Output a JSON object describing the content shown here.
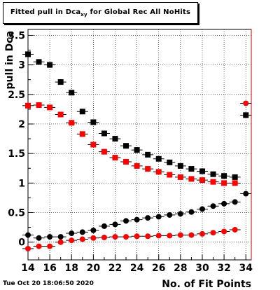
{
  "title": {
    "prefix": "Fitted pull in Dca",
    "subscript": "xy",
    "suffix": " for Global Rec All NoHits"
  },
  "datestamp": "Tue Oct 20 18:06:50 2020",
  "chart_data": {
    "type": "scatter",
    "title": "Fitted pull in Dca_xy for Global Rec All NoHits",
    "xlabel": "No. of Fit Points",
    "ylabel": "pull in Dca",
    "xlim": [
      14,
      34.5
    ],
    "ylim": [
      -0.3,
      3.6
    ],
    "xticks": [
      14,
      16,
      18,
      20,
      22,
      24,
      26,
      28,
      30,
      32,
      34
    ],
    "yticks": [
      0,
      0.5,
      1,
      1.5,
      2,
      2.5,
      3,
      3.5
    ],
    "ytick_labels": [
      "0",
      "0.5",
      "1",
      "1.5",
      "2",
      "2.5",
      "3",
      "3.5"
    ],
    "grid": true,
    "reference_line_x": 34.5,
    "series": [
      {
        "marker": "square",
        "color": "#000000",
        "x": [
          14,
          15,
          16,
          17,
          18,
          19,
          20,
          21,
          22,
          23,
          24,
          25,
          26,
          27,
          28,
          29,
          30,
          31,
          32,
          33,
          34
        ],
        "y": [
          3.18,
          3.05,
          3.0,
          2.71,
          2.53,
          2.21,
          2.03,
          1.84,
          1.75,
          1.63,
          1.56,
          1.48,
          1.41,
          1.35,
          1.29,
          1.24,
          1.2,
          1.15,
          1.12,
          1.1,
          2.15
        ]
      },
      {
        "marker": "square",
        "color": "#ff0000",
        "x": [
          14,
          15,
          16,
          17,
          18,
          19,
          20,
          21,
          22,
          23,
          24,
          25,
          26,
          27,
          28,
          29,
          30,
          31,
          32,
          33
        ],
        "y": [
          2.31,
          2.32,
          2.28,
          2.16,
          2.02,
          1.83,
          1.65,
          1.53,
          1.43,
          1.36,
          1.29,
          1.24,
          1.19,
          1.14,
          1.1,
          1.07,
          1.05,
          1.02,
          1.0,
          1.0
        ]
      },
      {
        "marker": "circle",
        "color": "#000000",
        "x": [
          14,
          15,
          16,
          17,
          18,
          19,
          20,
          21,
          22,
          23,
          24,
          25,
          26,
          27,
          28,
          29,
          30,
          31,
          32,
          33,
          34
        ],
        "y": [
          0.12,
          0.07,
          0.09,
          0.09,
          0.15,
          0.17,
          0.2,
          0.27,
          0.3,
          0.36,
          0.38,
          0.41,
          0.43,
          0.46,
          0.48,
          0.51,
          0.56,
          0.61,
          0.65,
          0.68,
          0.82
        ]
      },
      {
        "marker": "circle",
        "color": "#ff0000",
        "x": [
          14,
          15,
          16,
          17,
          18,
          19,
          20,
          21,
          22,
          23,
          24,
          25,
          26,
          27,
          28,
          29,
          30,
          31,
          32,
          33,
          34
        ],
        "y": [
          -0.11,
          -0.07,
          -0.07,
          0.0,
          0.03,
          0.05,
          0.07,
          0.08,
          0.09,
          0.09,
          0.1,
          0.1,
          0.11,
          0.11,
          0.12,
          0.12,
          0.14,
          0.16,
          0.18,
          0.21,
          2.35
        ]
      }
    ]
  }
}
